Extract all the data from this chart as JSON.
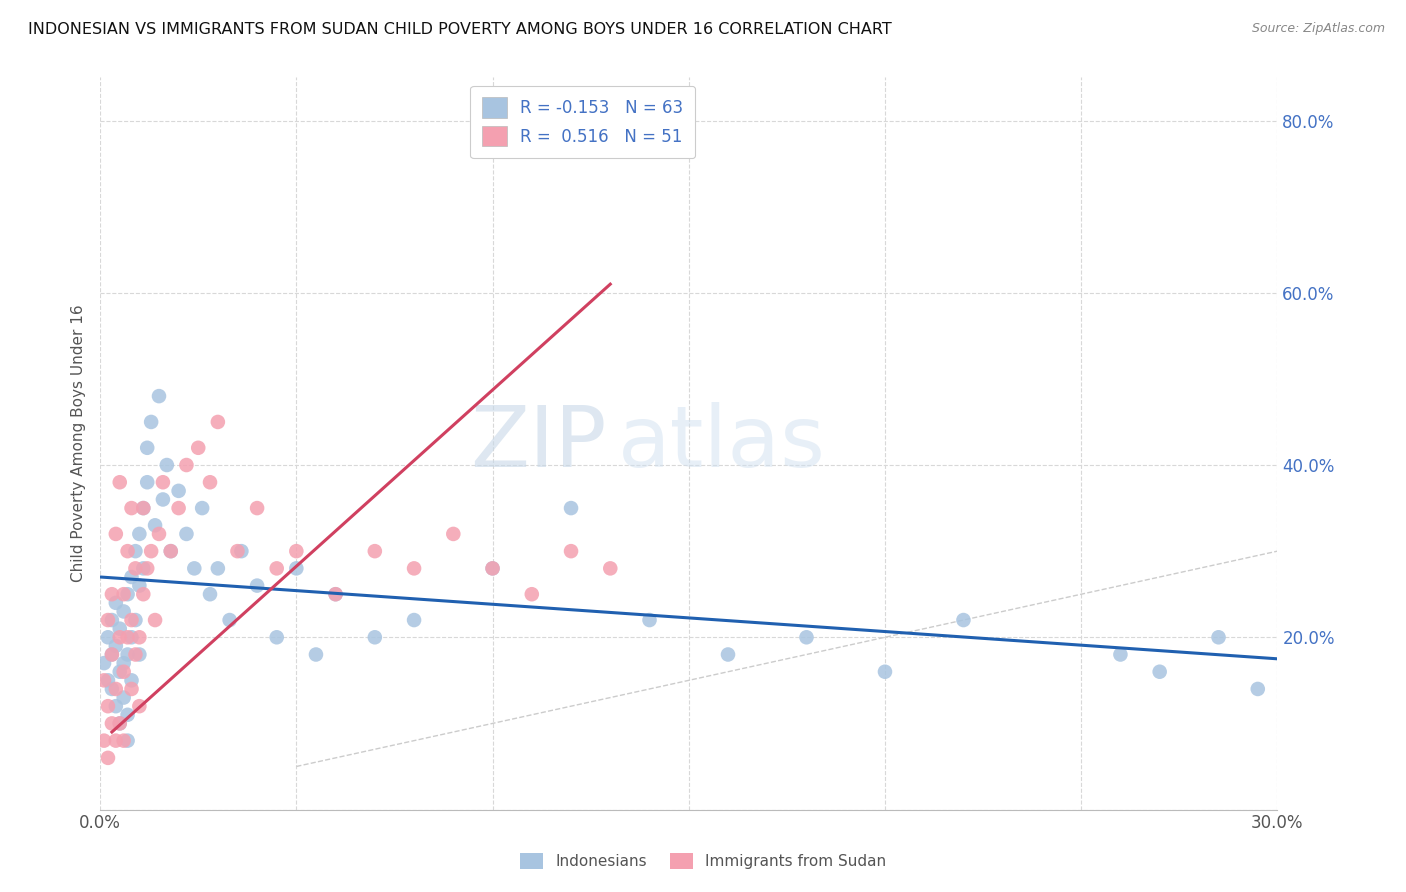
{
  "title": "INDONESIAN VS IMMIGRANTS FROM SUDAN CHILD POVERTY AMONG BOYS UNDER 16 CORRELATION CHART",
  "source": "Source: ZipAtlas.com",
  "ylabel": "Child Poverty Among Boys Under 16",
  "xlim": [
    0.0,
    0.3
  ],
  "ylim": [
    0.0,
    0.85
  ],
  "yticks": [
    0.0,
    0.2,
    0.4,
    0.6,
    0.8
  ],
  "r_indonesian": -0.153,
  "n_indonesian": 63,
  "r_sudan": 0.516,
  "n_sudan": 51,
  "color_indonesian": "#a8c4e0",
  "color_sudan": "#f4a0b0",
  "line_color_indonesian": "#2060b0",
  "line_color_sudan": "#d04060",
  "diagonal_color": "#cccccc",
  "background_color": "#ffffff",
  "grid_color": "#d8d8d8",
  "watermark_zip": "ZIP",
  "watermark_atlas": "atlas",
  "indonesian_x": [
    0.001,
    0.002,
    0.002,
    0.003,
    0.003,
    0.003,
    0.004,
    0.004,
    0.004,
    0.005,
    0.005,
    0.005,
    0.006,
    0.006,
    0.006,
    0.007,
    0.007,
    0.007,
    0.007,
    0.008,
    0.008,
    0.008,
    0.009,
    0.009,
    0.01,
    0.01,
    0.01,
    0.011,
    0.011,
    0.012,
    0.012,
    0.013,
    0.014,
    0.015,
    0.016,
    0.017,
    0.018,
    0.02,
    0.022,
    0.024,
    0.026,
    0.028,
    0.03,
    0.033,
    0.036,
    0.04,
    0.045,
    0.05,
    0.055,
    0.06,
    0.07,
    0.08,
    0.1,
    0.12,
    0.14,
    0.16,
    0.18,
    0.2,
    0.22,
    0.26,
    0.27,
    0.285,
    0.295
  ],
  "indonesian_y": [
    0.17,
    0.15,
    0.2,
    0.14,
    0.18,
    0.22,
    0.12,
    0.19,
    0.24,
    0.1,
    0.16,
    0.21,
    0.13,
    0.17,
    0.23,
    0.11,
    0.18,
    0.25,
    0.08,
    0.2,
    0.15,
    0.27,
    0.22,
    0.3,
    0.26,
    0.32,
    0.18,
    0.35,
    0.28,
    0.38,
    0.42,
    0.45,
    0.33,
    0.48,
    0.36,
    0.4,
    0.3,
    0.37,
    0.32,
    0.28,
    0.35,
    0.25,
    0.28,
    0.22,
    0.3,
    0.26,
    0.2,
    0.28,
    0.18,
    0.25,
    0.2,
    0.22,
    0.28,
    0.35,
    0.22,
    0.18,
    0.2,
    0.16,
    0.22,
    0.18,
    0.16,
    0.2,
    0.14
  ],
  "sudan_x": [
    0.001,
    0.001,
    0.002,
    0.002,
    0.002,
    0.003,
    0.003,
    0.003,
    0.004,
    0.004,
    0.004,
    0.005,
    0.005,
    0.005,
    0.006,
    0.006,
    0.006,
    0.007,
    0.007,
    0.008,
    0.008,
    0.008,
    0.009,
    0.009,
    0.01,
    0.01,
    0.011,
    0.011,
    0.012,
    0.013,
    0.014,
    0.015,
    0.016,
    0.018,
    0.02,
    0.022,
    0.025,
    0.028,
    0.03,
    0.035,
    0.04,
    0.045,
    0.05,
    0.06,
    0.07,
    0.08,
    0.09,
    0.1,
    0.11,
    0.12,
    0.13
  ],
  "sudan_y": [
    0.08,
    0.15,
    0.06,
    0.12,
    0.22,
    0.1,
    0.18,
    0.25,
    0.14,
    0.08,
    0.32,
    0.2,
    0.1,
    0.38,
    0.16,
    0.25,
    0.08,
    0.2,
    0.3,
    0.14,
    0.22,
    0.35,
    0.18,
    0.28,
    0.2,
    0.12,
    0.25,
    0.35,
    0.28,
    0.3,
    0.22,
    0.32,
    0.38,
    0.3,
    0.35,
    0.4,
    0.42,
    0.38,
    0.45,
    0.3,
    0.35,
    0.28,
    0.3,
    0.25,
    0.3,
    0.28,
    0.32,
    0.28,
    0.25,
    0.3,
    0.28
  ],
  "trend_indo_x0": 0.0,
  "trend_indo_y0": 0.27,
  "trend_indo_x1": 0.3,
  "trend_indo_y1": 0.175,
  "trend_sudan_x0": 0.003,
  "trend_sudan_y0": 0.09,
  "trend_sudan_x1": 0.13,
  "trend_sudan_y1": 0.61
}
